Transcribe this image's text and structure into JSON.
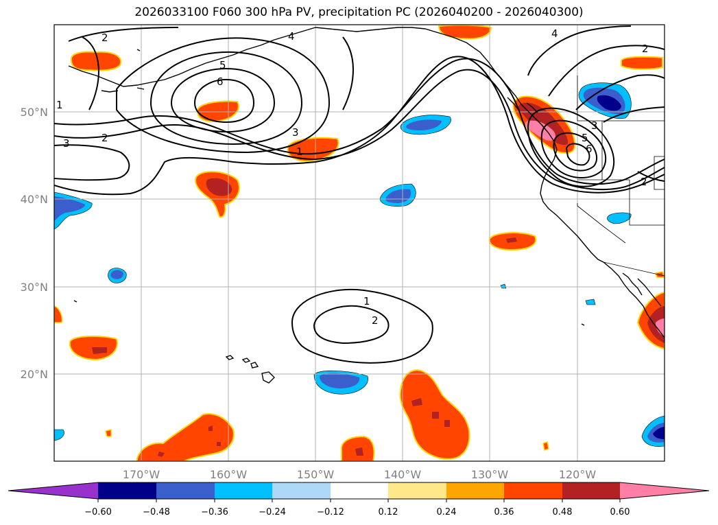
{
  "title": "2026033100 F060 300 hPa PV, precipitation PC (2026040200 - 2026040300)",
  "axes": {
    "longitude_ticks": [
      "170°W",
      "160°W",
      "150°W",
      "140°W",
      "130°W",
      "120°W"
    ],
    "latitude_ticks": [
      "50°N",
      "40°N",
      "30°N",
      "20°N"
    ]
  },
  "colorbar": {
    "tick_labels": [
      "−0.60",
      "−0.48",
      "−0.36",
      "−0.24",
      "−0.12",
      "0.12",
      "0.24",
      "0.36",
      "0.48",
      "0.60"
    ],
    "colors": [
      "#9932cc",
      "#00008b",
      "#3a5fcd",
      "#00bfff",
      "#add8f6",
      "#ffffff",
      "#ffe88a",
      "#ffa500",
      "#ff4500",
      "#b22222",
      "#ff7fa6"
    ]
  },
  "contour_labels": [
    "2",
    "4",
    "6",
    "5",
    "3",
    "1",
    "2",
    "3",
    "1",
    "4",
    "2",
    "3",
    "5",
    "6",
    "2",
    "1",
    "2"
  ]
}
